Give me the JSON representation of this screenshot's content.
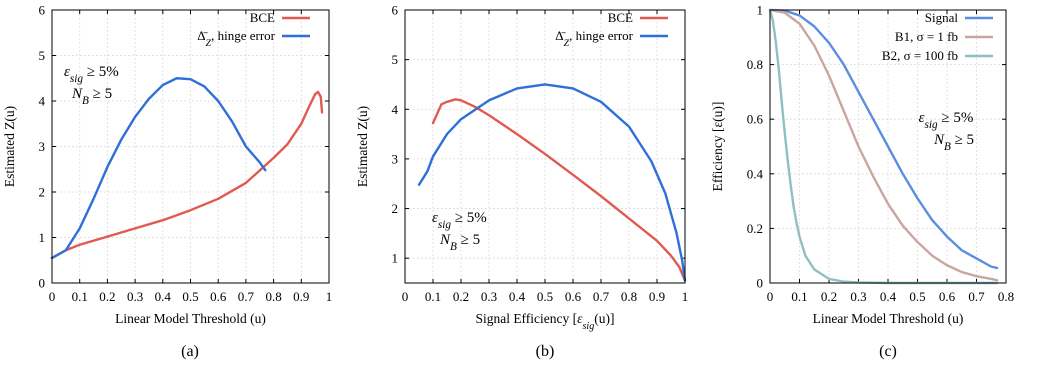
{
  "chart_data": [
    {
      "type": "line",
      "caption": "(a)",
      "xlabel": "Linear Model Threshold (u)",
      "ylabel": "Estimated Z(u)",
      "xlim": [
        0,
        1
      ],
      "ylim": [
        0,
        6
      ],
      "xticks": [
        "0",
        "0.1",
        "0.2",
        "0.3",
        "0.4",
        "0.5",
        "0.6",
        "0.7",
        "0.8",
        "0.9",
        "1"
      ],
      "yticks": [
        "0",
        "1",
        "2",
        "3",
        "4",
        "5",
        "6"
      ],
      "grid": true,
      "legend_position": "top-right",
      "annotation": [
        "εsig ≥ 5%",
        "NB ≥ 5"
      ],
      "series": [
        {
          "name": "BCE",
          "color": "#e05a50",
          "points": [
            [
              0,
              0.55
            ],
            [
              0.05,
              0.72
            ],
            [
              0.1,
              0.84
            ],
            [
              0.2,
              1.02
            ],
            [
              0.3,
              1.2
            ],
            [
              0.4,
              1.38
            ],
            [
              0.5,
              1.6
            ],
            [
              0.6,
              1.85
            ],
            [
              0.7,
              2.2
            ],
            [
              0.8,
              2.75
            ],
            [
              0.85,
              3.05
            ],
            [
              0.9,
              3.5
            ],
            [
              0.93,
              3.9
            ],
            [
              0.95,
              4.15
            ],
            [
              0.96,
              4.2
            ],
            [
              0.97,
              4.1
            ],
            [
              0.975,
              3.75
            ]
          ]
        },
        {
          "name": "Δ̄Z, hinge error",
          "color": "#2f6fd8",
          "points": [
            [
              0,
              0.55
            ],
            [
              0.05,
              0.72
            ],
            [
              0.1,
              1.2
            ],
            [
              0.15,
              1.85
            ],
            [
              0.2,
              2.55
            ],
            [
              0.25,
              3.15
            ],
            [
              0.3,
              3.65
            ],
            [
              0.35,
              4.05
            ],
            [
              0.4,
              4.35
            ],
            [
              0.45,
              4.5
            ],
            [
              0.5,
              4.48
            ],
            [
              0.55,
              4.32
            ],
            [
              0.6,
              4.0
            ],
            [
              0.65,
              3.55
            ],
            [
              0.7,
              3.0
            ],
            [
              0.75,
              2.65
            ],
            [
              0.77,
              2.48
            ]
          ]
        }
      ]
    },
    {
      "type": "line",
      "caption": "(b)",
      "xlabel": "Signal Efficiency [εsig(u)]",
      "ylabel": "Estimated Z(u)",
      "xlim": [
        0,
        1
      ],
      "ylim": [
        0.5,
        6
      ],
      "xticks": [
        "0",
        "0.1",
        "0.2",
        "0.3",
        "0.4",
        "0.5",
        "0.6",
        "0.7",
        "0.8",
        "0.9",
        "1"
      ],
      "yticks": [
        "1",
        "2",
        "3",
        "4",
        "5",
        "6"
      ],
      "grid": true,
      "legend_position": "top-right",
      "annotation": [
        "εsig ≥ 5%",
        "NB ≥ 5"
      ],
      "series": [
        {
          "name": "BCE",
          "color": "#e05a50",
          "points": [
            [
              0.1,
              3.72
            ],
            [
              0.13,
              4.1
            ],
            [
              0.15,
              4.15
            ],
            [
              0.18,
              4.2
            ],
            [
              0.2,
              4.18
            ],
            [
              0.25,
              4.05
            ],
            [
              0.3,
              3.88
            ],
            [
              0.4,
              3.5
            ],
            [
              0.5,
              3.1
            ],
            [
              0.6,
              2.68
            ],
            [
              0.7,
              2.25
            ],
            [
              0.8,
              1.8
            ],
            [
              0.9,
              1.35
            ],
            [
              0.95,
              1.05
            ],
            [
              0.98,
              0.82
            ],
            [
              1.0,
              0.55
            ]
          ]
        },
        {
          "name": "Δ̄Z, hinge error",
          "color": "#2f6fd8",
          "points": [
            [
              0.05,
              2.48
            ],
            [
              0.08,
              2.75
            ],
            [
              0.1,
              3.05
            ],
            [
              0.15,
              3.5
            ],
            [
              0.2,
              3.8
            ],
            [
              0.3,
              4.18
            ],
            [
              0.4,
              4.42
            ],
            [
              0.5,
              4.5
            ],
            [
              0.6,
              4.42
            ],
            [
              0.7,
              4.15
            ],
            [
              0.8,
              3.65
            ],
            [
              0.88,
              2.95
            ],
            [
              0.93,
              2.3
            ],
            [
              0.97,
              1.5
            ],
            [
              0.99,
              0.95
            ],
            [
              1.0,
              0.55
            ]
          ]
        }
      ]
    },
    {
      "type": "line",
      "caption": "(c)",
      "xlabel": "Linear Model Threshold (u)",
      "ylabel": "Efficiency [ε(u)]",
      "xlim": [
        0,
        0.8
      ],
      "ylim": [
        0,
        1
      ],
      "xticks": [
        "0",
        "0.1",
        "0.2",
        "0.3",
        "0.4",
        "0.5",
        "0.6",
        "0.7",
        "0.8"
      ],
      "yticks": [
        "0",
        "0.2",
        "0.4",
        "0.6",
        "0.8",
        "1"
      ],
      "grid": true,
      "legend_position": "top-right",
      "annotation": [
        "εsig ≥ 5%",
        "NB ≥ 5"
      ],
      "series": [
        {
          "name": "Signal",
          "color": "#5b8ee0",
          "points": [
            [
              0,
              1.0
            ],
            [
              0.05,
              0.998
            ],
            [
              0.1,
              0.98
            ],
            [
              0.15,
              0.94
            ],
            [
              0.2,
              0.88
            ],
            [
              0.25,
              0.8
            ],
            [
              0.3,
              0.7
            ],
            [
              0.35,
              0.6
            ],
            [
              0.4,
              0.5
            ],
            [
              0.45,
              0.4
            ],
            [
              0.5,
              0.31
            ],
            [
              0.55,
              0.23
            ],
            [
              0.6,
              0.17
            ],
            [
              0.65,
              0.12
            ],
            [
              0.7,
              0.09
            ],
            [
              0.75,
              0.06
            ],
            [
              0.77,
              0.055
            ]
          ]
        },
        {
          "name": "B1, σ = 1 fb",
          "color": "#caa6a0",
          "points": [
            [
              0,
              1.0
            ],
            [
              0.05,
              0.99
            ],
            [
              0.1,
              0.95
            ],
            [
              0.15,
              0.87
            ],
            [
              0.2,
              0.76
            ],
            [
              0.25,
              0.63
            ],
            [
              0.3,
              0.5
            ],
            [
              0.35,
              0.39
            ],
            [
              0.4,
              0.29
            ],
            [
              0.45,
              0.21
            ],
            [
              0.5,
              0.15
            ],
            [
              0.55,
              0.1
            ],
            [
              0.6,
              0.065
            ],
            [
              0.65,
              0.04
            ],
            [
              0.7,
              0.025
            ],
            [
              0.75,
              0.015
            ],
            [
              0.77,
              0.01
            ]
          ]
        },
        {
          "name": "B2, σ = 100 fb",
          "color": "#8fc0c0",
          "points": [
            [
              0,
              1.0
            ],
            [
              0.01,
              0.96
            ],
            [
              0.02,
              0.88
            ],
            [
              0.03,
              0.78
            ],
            [
              0.04,
              0.66
            ],
            [
              0.05,
              0.55
            ],
            [
              0.06,
              0.45
            ],
            [
              0.07,
              0.36
            ],
            [
              0.08,
              0.28
            ],
            [
              0.09,
              0.22
            ],
            [
              0.1,
              0.17
            ],
            [
              0.12,
              0.1
            ],
            [
              0.15,
              0.05
            ],
            [
              0.2,
              0.015
            ],
            [
              0.25,
              0.005
            ],
            [
              0.3,
              0.002
            ],
            [
              0.4,
              0.0
            ],
            [
              0.77,
              0.0
            ]
          ]
        }
      ]
    }
  ]
}
